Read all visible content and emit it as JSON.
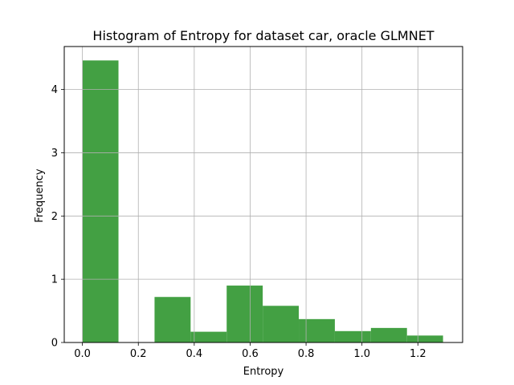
{
  "chart_data": {
    "type": "bar",
    "title": "Histogram of Entropy for dataset car, oracle GLMNET",
    "xlabel": "Entropy",
    "ylabel": "Frequency",
    "xlim": [
      -0.065,
      1.36
    ],
    "ylim": [
      0,
      4.68
    ],
    "grid": true,
    "bar_color": "#43a043",
    "bins": [
      {
        "x0": 0.0,
        "x1": 0.129,
        "value": 4.46
      },
      {
        "x0": 0.129,
        "x1": 0.258,
        "value": 0.0
      },
      {
        "x0": 0.258,
        "x1": 0.387,
        "value": 0.72
      },
      {
        "x0": 0.387,
        "x1": 0.516,
        "value": 0.17
      },
      {
        "x0": 0.516,
        "x1": 0.645,
        "value": 0.9
      },
      {
        "x0": 0.645,
        "x1": 0.774,
        "value": 0.58
      },
      {
        "x0": 0.774,
        "x1": 0.903,
        "value": 0.37
      },
      {
        "x0": 0.903,
        "x1": 1.032,
        "value": 0.18
      },
      {
        "x0": 1.032,
        "x1": 1.161,
        "value": 0.23
      },
      {
        "x0": 1.161,
        "x1": 1.29,
        "value": 0.11
      }
    ],
    "xticks": [
      {
        "value": 0.0,
        "label": "0.0"
      },
      {
        "value": 0.2,
        "label": "0.2"
      },
      {
        "value": 0.4,
        "label": "0.4"
      },
      {
        "value": 0.6,
        "label": "0.6"
      },
      {
        "value": 0.8,
        "label": "0.8"
      },
      {
        "value": 1.0,
        "label": "1.0"
      },
      {
        "value": 1.2,
        "label": "1.2"
      }
    ],
    "yticks": [
      {
        "value": 0,
        "label": "0"
      },
      {
        "value": 1,
        "label": "1"
      },
      {
        "value": 2,
        "label": "2"
      },
      {
        "value": 3,
        "label": "3"
      },
      {
        "value": 4,
        "label": "4"
      }
    ]
  }
}
